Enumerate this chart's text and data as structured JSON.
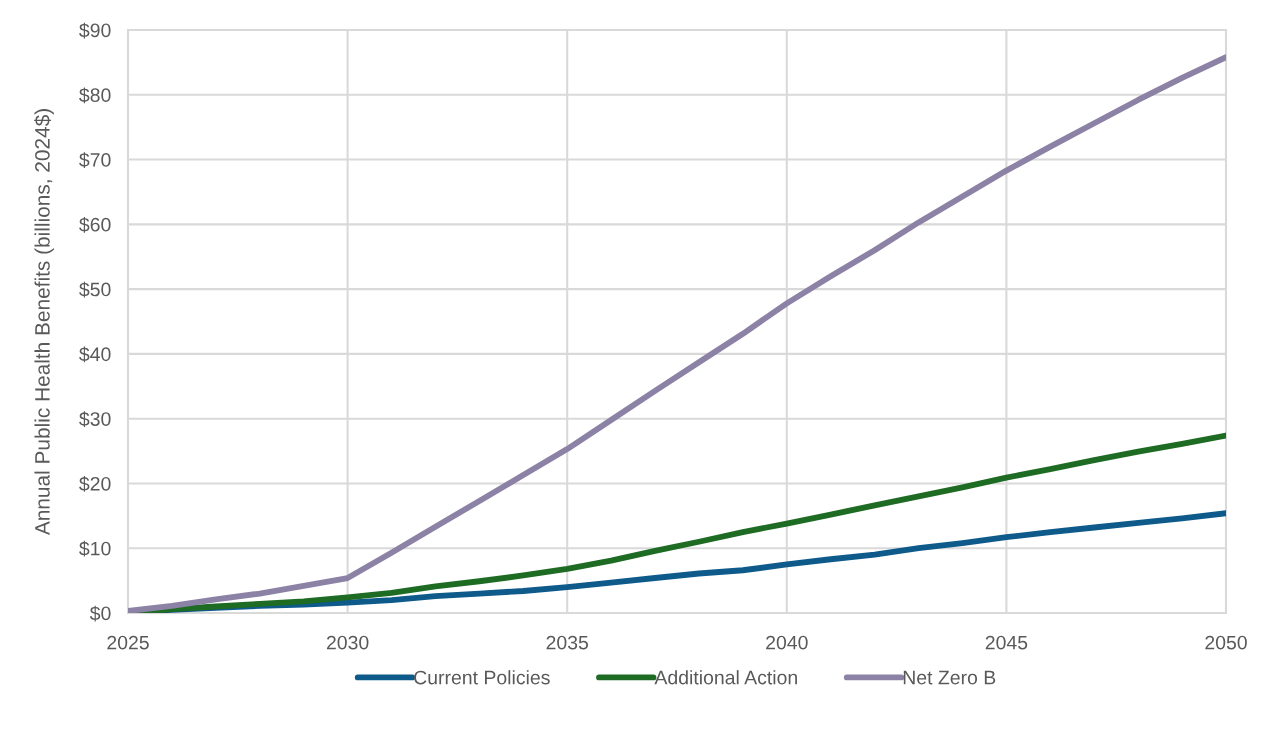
{
  "chart_data": {
    "type": "line",
    "ylabel": "Annual Public Health Benefits (billions, 2024$)",
    "x": [
      2025,
      2026,
      2027,
      2028,
      2029,
      2030,
      2031,
      2032,
      2033,
      2034,
      2035,
      2036,
      2037,
      2038,
      2039,
      2040,
      2041,
      2042,
      2043,
      2044,
      2045,
      2046,
      2047,
      2048,
      2049,
      2050
    ],
    "series": [
      {
        "name": "Current Policies",
        "color": "#0e5a8a",
        "values": [
          0,
          0.5,
          0.8,
          1.1,
          1.3,
          1.6,
          2.0,
          2.6,
          3.0,
          3.4,
          4.0,
          4.7,
          5.4,
          6.1,
          6.6,
          7.5,
          8.3,
          9.0,
          10.0,
          10.8,
          11.7,
          12.5,
          13.2,
          13.9,
          14.6,
          15.4
        ]
      },
      {
        "name": "Additional Action",
        "color": "#1e6b24",
        "values": [
          0,
          0.6,
          1.0,
          1.4,
          1.8,
          2.4,
          3.1,
          4.1,
          4.9,
          5.8,
          6.8,
          8.1,
          9.6,
          11.0,
          12.5,
          13.8,
          15.2,
          16.6,
          18.0,
          19.4,
          20.9,
          22.2,
          23.6,
          24.9,
          26.1,
          27.4
        ]
      },
      {
        "name": "Net Zero B",
        "color": "#8c82a6",
        "values": [
          0.3,
          1.1,
          2.1,
          3.0,
          4.2,
          5.4,
          9.3,
          13.3,
          17.3,
          21.3,
          25.3,
          29.8,
          34.3,
          38.7,
          43.1,
          47.8,
          52.0,
          56.0,
          60.3,
          64.3,
          68.3,
          72.0,
          75.6,
          79.2,
          82.6,
          85.8
        ]
      }
    ],
    "xlim": [
      2025,
      2050
    ],
    "xticks": [
      2025,
      2030,
      2035,
      2040,
      2045,
      2050
    ],
    "ylim": [
      0,
      90
    ],
    "yticks": [
      {
        "value": 0,
        "label": "$0"
      },
      {
        "value": 10,
        "label": "$10"
      },
      {
        "value": 20,
        "label": "$20"
      },
      {
        "value": 30,
        "label": "$30"
      },
      {
        "value": 40,
        "label": "$40"
      },
      {
        "value": 50,
        "label": "$50"
      },
      {
        "value": 60,
        "label": "$60"
      },
      {
        "value": 70,
        "label": "$70"
      },
      {
        "value": 80,
        "label": "$80"
      },
      {
        "value": 90,
        "label": "$90"
      }
    ],
    "grid": true,
    "legend": "bottom",
    "marker": "none",
    "line_style": "solid"
  }
}
